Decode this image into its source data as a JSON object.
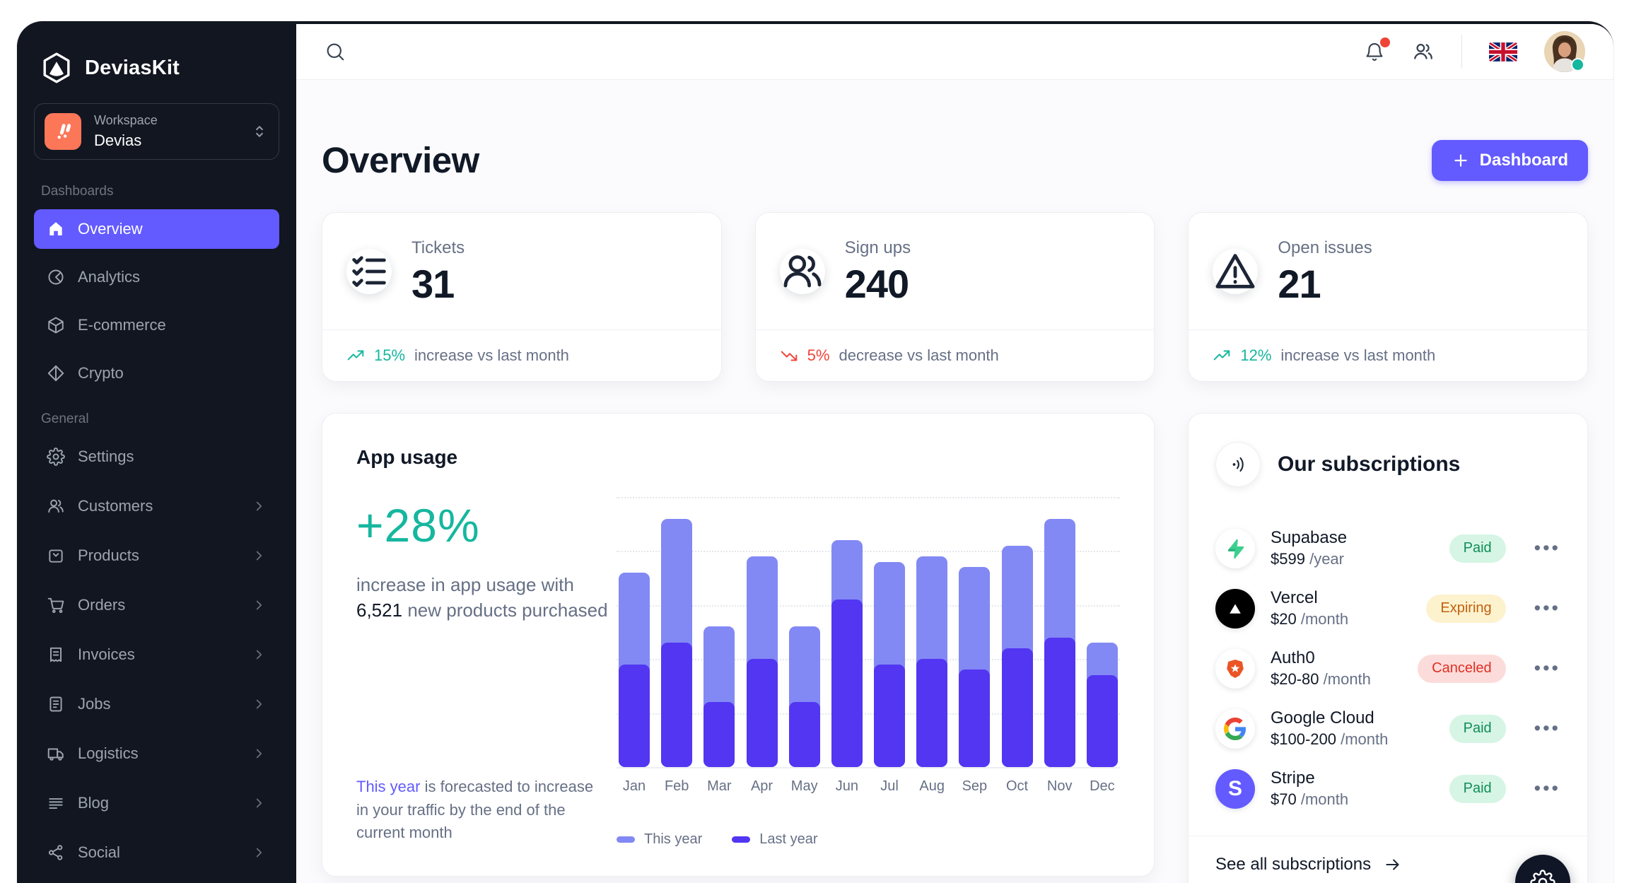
{
  "brand": {
    "name": "DeviasKit"
  },
  "workspace": {
    "label": "Workspace",
    "value": "Devias"
  },
  "sidebar": {
    "sections": [
      {
        "label": "Dashboards",
        "items": [
          {
            "label": "Overview",
            "icon": "home",
            "active": true,
            "chevron": false
          },
          {
            "label": "Analytics",
            "icon": "pie",
            "active": false,
            "chevron": false
          },
          {
            "label": "E-commerce",
            "icon": "cube",
            "active": false,
            "chevron": false
          },
          {
            "label": "Crypto",
            "icon": "diamond",
            "active": false,
            "chevron": false
          }
        ]
      },
      {
        "label": "General",
        "items": [
          {
            "label": "Settings",
            "icon": "gear",
            "active": false,
            "chevron": false
          },
          {
            "label": "Customers",
            "icon": "users",
            "active": false,
            "chevron": true
          },
          {
            "label": "Products",
            "icon": "bag",
            "active": false,
            "chevron": true
          },
          {
            "label": "Orders",
            "icon": "cart",
            "active": false,
            "chevron": true
          },
          {
            "label": "Invoices",
            "icon": "receipt",
            "active": false,
            "chevron": true
          },
          {
            "label": "Jobs",
            "icon": "doc",
            "active": false,
            "chevron": true
          },
          {
            "label": "Logistics",
            "icon": "truck",
            "active": false,
            "chevron": true
          },
          {
            "label": "Blog",
            "icon": "lines",
            "active": false,
            "chevron": true
          },
          {
            "label": "Social",
            "icon": "share",
            "active": false,
            "chevron": true
          }
        ]
      }
    ]
  },
  "topbar": {
    "icons": [
      "search",
      "bell",
      "users-group",
      "uk-flag",
      "avatar"
    ]
  },
  "header": {
    "title": "Overview",
    "button_label": "Dashboard"
  },
  "stats": [
    {
      "label": "Tickets",
      "value": "31",
      "icon": "checklist",
      "trend": "up",
      "trend_pct": "15%",
      "trend_text": "increase vs last month"
    },
    {
      "label": "Sign ups",
      "value": "240",
      "icon": "users",
      "trend": "down",
      "trend_pct": "5%",
      "trend_text": "decrease vs last month"
    },
    {
      "label": "Open issues",
      "value": "21",
      "icon": "warning",
      "trend": "up",
      "trend_pct": "12%",
      "trend_text": "increase vs last month"
    }
  ],
  "app_usage": {
    "title": "App usage",
    "highlight": "+28%",
    "desc_line1": "increase in app usage with",
    "desc_strong": "6,521",
    "desc_line2": "new products purchased",
    "footnote_highlight": "This year",
    "footnote_rest": "is forecasted to increase in your traffic by the end of the current month"
  },
  "chart_data": {
    "type": "bar",
    "title": "App usage",
    "categories": [
      "Jan",
      "Feb",
      "Mar",
      "Apr",
      "May",
      "Jun",
      "Jul",
      "Aug",
      "Sep",
      "Oct",
      "Nov",
      "Dec"
    ],
    "series": [
      {
        "name": "This year",
        "color": "#8289f4",
        "values": [
          18,
          23,
          13,
          19.5,
          13,
          21,
          19,
          19.5,
          18.5,
          20.5,
          23,
          11.5
        ]
      },
      {
        "name": "Last year",
        "color": "#5236f2",
        "values": [
          9.5,
          11.5,
          6,
          10,
          6,
          15.5,
          9.5,
          10,
          9,
          11,
          12,
          8.5
        ]
      }
    ],
    "xlabel": "",
    "ylabel": "",
    "ylim": [
      0,
      25
    ],
    "grid": "horizontal-dotted",
    "legend_position": "bottom",
    "bars_overlaid": true
  },
  "subscriptions": {
    "title": "Our subscriptions",
    "icon": "broadcast",
    "rows": [
      {
        "name": "Supabase",
        "logo": "supabase",
        "price": "$599",
        "period": "/year",
        "status": "Paid"
      },
      {
        "name": "Vercel",
        "logo": "vercel",
        "price": "$20",
        "period": "/month",
        "status": "Expiring"
      },
      {
        "name": "Auth0",
        "logo": "auth0",
        "price": "$20-80",
        "period": "/month",
        "status": "Canceled"
      },
      {
        "name": "Google Cloud",
        "logo": "google",
        "price": "$100-200",
        "period": "/month",
        "status": "Paid"
      },
      {
        "name": "Stripe",
        "logo": "stripe",
        "price": "$70",
        "period": "/month",
        "status": "Paid"
      }
    ],
    "menu_glyph": "•••",
    "footer_label": "See all subscriptions"
  },
  "colors": {
    "primary": "#635bff",
    "sidebar_bg": "#121621",
    "workspace_logo": "#fb7758",
    "success": "#15b79e",
    "error": "#f04438",
    "text_primary": "#111927",
    "text_secondary": "#667085",
    "chart_this_year": "#8289f4",
    "chart_last_year": "#5236f2",
    "pill_paid_bg": "#d6f5e5",
    "pill_paid_text": "#118d57",
    "pill_expiring_bg": "#fdf2ce",
    "pill_expiring_text": "#c2600e",
    "pill_canceled_bg": "#fcdcda",
    "pill_canceled_text": "#de3024"
  }
}
